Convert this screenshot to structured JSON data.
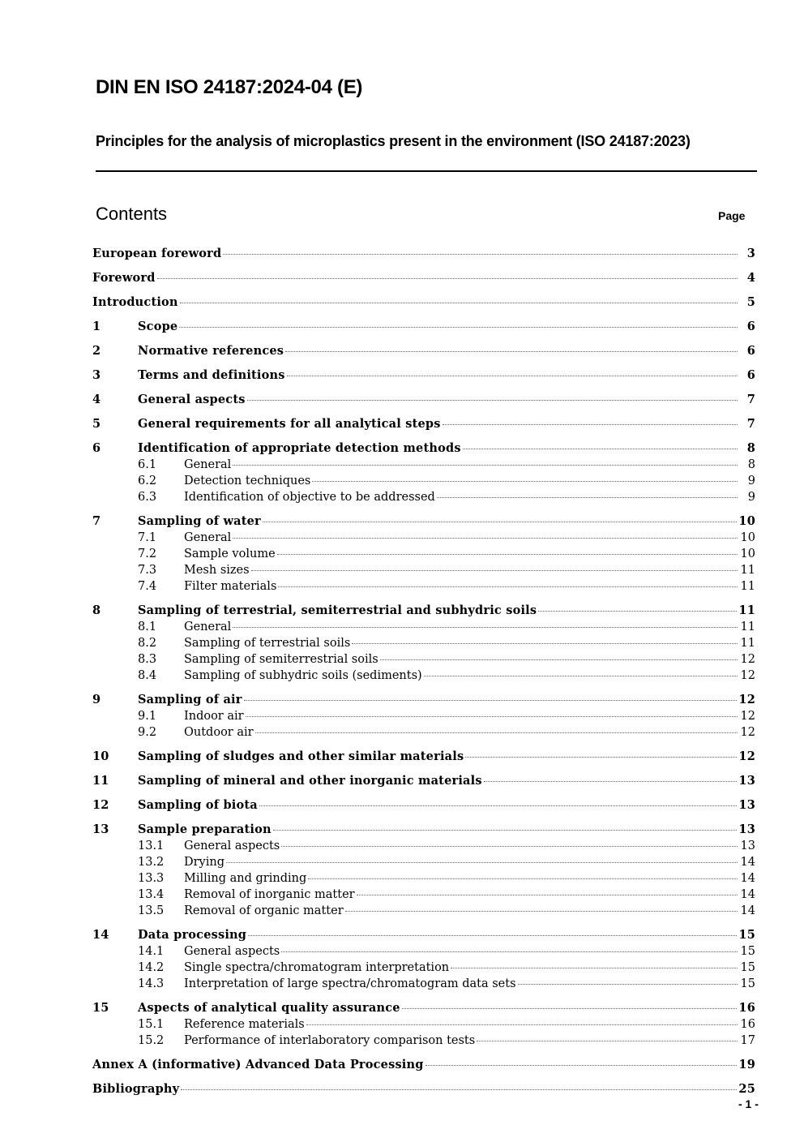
{
  "header": {
    "title": "DIN EN ISO 24187:2024-04 (E)",
    "subtitle": "Principles for the analysis of microplastics present in the environment (ISO 24187:2023)"
  },
  "contents": {
    "heading": "Contents",
    "page_label": "Page",
    "entries": [
      {
        "level": 0,
        "num": "",
        "title": "European foreword",
        "page": "3"
      },
      {
        "level": 0,
        "num": "",
        "title": "Foreword",
        "page": "4"
      },
      {
        "level": 0,
        "num": "",
        "title": "Introduction",
        "page": "5"
      },
      {
        "level": 1,
        "num": "1",
        "title": "Scope",
        "page": "6"
      },
      {
        "level": 1,
        "num": "2",
        "title": "Normative references",
        "page": "6"
      },
      {
        "level": 1,
        "num": "3",
        "title": "Terms and definitions",
        "page": "6"
      },
      {
        "level": 1,
        "num": "4",
        "title": "General aspects",
        "page": "7"
      },
      {
        "level": 1,
        "num": "5",
        "title": "General requirements for all analytical steps",
        "page": "7"
      },
      {
        "level": 1,
        "num": "6",
        "title": "Identification of appropriate detection methods",
        "page": "8"
      },
      {
        "level": 2,
        "num": "6.1",
        "title": "General",
        "page": "8"
      },
      {
        "level": 2,
        "num": "6.2",
        "title": "Detection techniques",
        "page": "9"
      },
      {
        "level": 2,
        "num": "6.3",
        "title": "Identification of objective to be addressed",
        "page": "9"
      },
      {
        "level": 1,
        "num": "7",
        "title": "Sampling of water",
        "page": "10"
      },
      {
        "level": 2,
        "num": "7.1",
        "title": "General",
        "page": "10"
      },
      {
        "level": 2,
        "num": "7.2",
        "title": "Sample volume",
        "page": "10"
      },
      {
        "level": 2,
        "num": "7.3",
        "title": "Mesh sizes",
        "page": "11"
      },
      {
        "level": 2,
        "num": "7.4",
        "title": "Filter materials",
        "page": "11"
      },
      {
        "level": 1,
        "num": "8",
        "title": "Sampling of terrestrial, semiterrestrial and subhydric soils",
        "page": "11"
      },
      {
        "level": 2,
        "num": "8.1",
        "title": "General",
        "page": "11"
      },
      {
        "level": 2,
        "num": "8.2",
        "title": "Sampling of terrestrial soils",
        "page": "11"
      },
      {
        "level": 2,
        "num": "8.3",
        "title": "Sampling of semiterrestrial soils",
        "page": "12"
      },
      {
        "level": 2,
        "num": "8.4",
        "title": "Sampling of subhydric soils (sediments)",
        "page": "12"
      },
      {
        "level": 1,
        "num": "9",
        "title": "Sampling of air",
        "page": "12"
      },
      {
        "level": 2,
        "num": "9.1",
        "title": "Indoor air",
        "page": "12"
      },
      {
        "level": 2,
        "num": "9.2",
        "title": "Outdoor air",
        "page": "12"
      },
      {
        "level": 1,
        "num": "10",
        "title": "Sampling of sludges and other similar materials",
        "page": "12"
      },
      {
        "level": 1,
        "num": "11",
        "title": "Sampling of mineral and other inorganic materials",
        "page": "13"
      },
      {
        "level": 1,
        "num": "12",
        "title": "Sampling of biota",
        "page": "13"
      },
      {
        "level": 1,
        "num": "13",
        "title": "Sample preparation",
        "page": "13"
      },
      {
        "level": 2,
        "num": "13.1",
        "title": "General aspects",
        "page": "13"
      },
      {
        "level": 2,
        "num": "13.2",
        "title": "Drying",
        "page": "14"
      },
      {
        "level": 2,
        "num": "13.3",
        "title": "Milling and grinding",
        "page": "14"
      },
      {
        "level": 2,
        "num": "13.4",
        "title": "Removal of inorganic matter",
        "page": "14"
      },
      {
        "level": 2,
        "num": "13.5",
        "title": "Removal of organic matter",
        "page": "14"
      },
      {
        "level": 1,
        "num": "14",
        "title": "Data processing",
        "page": "15"
      },
      {
        "level": 2,
        "num": "14.1",
        "title": "General aspects",
        "page": "15"
      },
      {
        "level": 2,
        "num": "14.2",
        "title": "Single spectra/chromatogram interpretation",
        "page": "15"
      },
      {
        "level": 2,
        "num": "14.3",
        "title": "Interpretation of large spectra/chromatogram data sets",
        "page": "15"
      },
      {
        "level": 1,
        "num": "15",
        "title": "Aspects of analytical quality assurance",
        "page": "16"
      },
      {
        "level": 2,
        "num": "15.1",
        "title": "Reference materials",
        "page": "16"
      },
      {
        "level": 2,
        "num": "15.2",
        "title": "Performance of interlaboratory comparison tests",
        "page": "17"
      },
      {
        "level": 0,
        "num": "",
        "title": "Annex A (informative)  Advanced Data Processing",
        "page": "19"
      },
      {
        "level": 0,
        "num": "",
        "title": "Bibliography",
        "page": "25"
      }
    ]
  },
  "footer": {
    "page_number": "- 1 -"
  }
}
